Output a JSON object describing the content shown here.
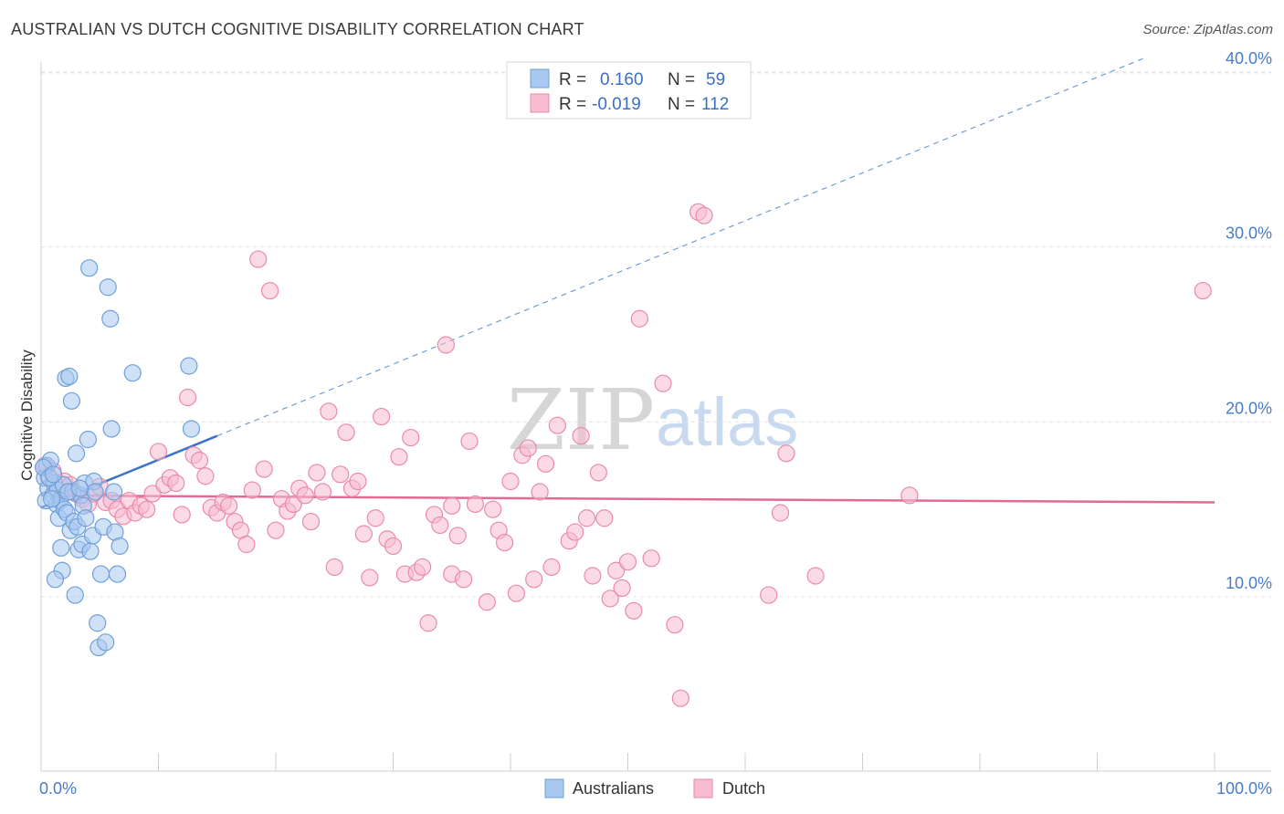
{
  "title": "AUSTRALIAN VS DUTCH COGNITIVE DISABILITY CORRELATION CHART",
  "source": "Source: ZipAtlas.com",
  "watermark": {
    "zip": "ZIP",
    "atlas": "atlas"
  },
  "legend_top": {
    "rows": [
      {
        "r_label": "R =",
        "r_value": "0.160",
        "n_label": "N =",
        "n_value": "59",
        "color": "#a8c8f0",
        "stroke": "#6f9fd8"
      },
      {
        "r_label": "R =",
        "r_value": "-0.019",
        "n_label": "N =",
        "n_value": "112",
        "color": "#f8bcd0",
        "stroke": "#e98aaa"
      }
    ]
  },
  "legend_bottom": {
    "items": [
      {
        "label": "Australians",
        "color": "#a8c8f0",
        "stroke": "#6f9fd8"
      },
      {
        "label": "Dutch",
        "color": "#f8bcd0",
        "stroke": "#e98aaa"
      }
    ]
  },
  "chart_data": {
    "type": "scatter",
    "title": "AUSTRALIAN VS DUTCH COGNITIVE DISABILITY CORRELATION CHART",
    "xlabel": "",
    "ylabel": "Cognitive Disability",
    "xlim": [
      0,
      100
    ],
    "ylim": [
      0,
      42
    ],
    "x_tick_labels": [
      "0.0%",
      "100.0%"
    ],
    "y_ticks": [
      10,
      20,
      30,
      40
    ],
    "y_tick_labels": [
      "10.0%",
      "20.0%",
      "30.0%",
      "40.0%"
    ],
    "grid": true,
    "legend_position": "top-center",
    "series": [
      {
        "name": "Australians",
        "color": "#6f9fd8",
        "fill": "#a8c8f0",
        "points": [
          [
            0.3,
            16.8
          ],
          [
            0.5,
            17.5
          ],
          [
            0.6,
            16.2
          ],
          [
            0.8,
            17.8
          ],
          [
            1.0,
            15.8
          ],
          [
            1.1,
            16.5
          ],
          [
            1.3,
            15.3
          ],
          [
            1.4,
            16.1
          ],
          [
            1.5,
            14.5
          ],
          [
            1.6,
            15.5
          ],
          [
            1.7,
            12.8
          ],
          [
            1.8,
            11.5
          ],
          [
            1.9,
            16.4
          ],
          [
            2.0,
            15.0
          ],
          [
            2.1,
            22.5
          ],
          [
            2.2,
            14.8
          ],
          [
            2.4,
            22.6
          ],
          [
            2.5,
            13.8
          ],
          [
            2.6,
            21.2
          ],
          [
            2.7,
            16.0
          ],
          [
            2.8,
            14.3
          ],
          [
            2.9,
            10.1
          ],
          [
            3.0,
            18.2
          ],
          [
            3.1,
            14.0
          ],
          [
            3.2,
            12.7
          ],
          [
            3.4,
            15.8
          ],
          [
            3.5,
            13.0
          ],
          [
            3.6,
            15.2
          ],
          [
            3.7,
            16.5
          ],
          [
            3.8,
            14.5
          ],
          [
            4.0,
            19.0
          ],
          [
            4.1,
            28.8
          ],
          [
            4.2,
            12.6
          ],
          [
            4.4,
            13.5
          ],
          [
            4.5,
            16.6
          ],
          [
            4.6,
            16.0
          ],
          [
            4.8,
            8.5
          ],
          [
            4.9,
            7.1
          ],
          [
            5.1,
            11.3
          ],
          [
            5.3,
            14.0
          ],
          [
            5.5,
            7.4
          ],
          [
            5.7,
            27.7
          ],
          [
            5.9,
            25.9
          ],
          [
            6.0,
            19.6
          ],
          [
            6.2,
            16.0
          ],
          [
            6.3,
            13.7
          ],
          [
            6.5,
            11.3
          ],
          [
            6.7,
            12.9
          ],
          [
            7.8,
            22.8
          ],
          [
            12.6,
            23.2
          ],
          [
            12.8,
            19.6
          ],
          [
            0.2,
            17.4
          ],
          [
            0.4,
            15.5
          ],
          [
            0.7,
            16.8
          ],
          [
            0.9,
            15.6
          ],
          [
            1.2,
            11.0
          ],
          [
            2.3,
            16.0
          ],
          [
            3.3,
            16.2
          ],
          [
            1.05,
            17.0
          ]
        ],
        "trend": {
          "x": [
            0,
            15
          ],
          "y": [
            15.1,
            19.2
          ],
          "dashed_extension": {
            "x": [
              15,
              94
            ],
            "y": [
              19.2,
              40.8
            ]
          }
        }
      },
      {
        "name": "Dutch",
        "color": "#e98aaa",
        "fill": "#f8bcd0",
        "points": [
          [
            0.3,
            17.5
          ],
          [
            0.6,
            16.9
          ],
          [
            1.0,
            17.2
          ],
          [
            1.5,
            16.5
          ],
          [
            2.0,
            16.6
          ],
          [
            2.5,
            16.4
          ],
          [
            3.0,
            15.9
          ],
          [
            3.5,
            15.6
          ],
          [
            4.0,
            15.3
          ],
          [
            4.5,
            15.9
          ],
          [
            5.0,
            16.3
          ],
          [
            5.5,
            15.4
          ],
          [
            6.0,
            15.5
          ],
          [
            6.5,
            15.0
          ],
          [
            7.0,
            14.6
          ],
          [
            7.5,
            15.5
          ],
          [
            8.0,
            14.8
          ],
          [
            8.5,
            15.2
          ],
          [
            9.0,
            15.0
          ],
          [
            9.5,
            15.9
          ],
          [
            10.0,
            18.3
          ],
          [
            10.5,
            16.4
          ],
          [
            11.0,
            16.8
          ],
          [
            11.5,
            16.5
          ],
          [
            12.0,
            14.7
          ],
          [
            12.5,
            21.4
          ],
          [
            13.0,
            18.1
          ],
          [
            13.5,
            17.8
          ],
          [
            14.0,
            16.9
          ],
          [
            14.5,
            15.1
          ],
          [
            15.0,
            14.8
          ],
          [
            15.5,
            15.4
          ],
          [
            16.0,
            15.2
          ],
          [
            16.5,
            14.3
          ],
          [
            17.0,
            13.8
          ],
          [
            17.5,
            13.0
          ],
          [
            18.0,
            16.1
          ],
          [
            18.5,
            29.3
          ],
          [
            19.0,
            17.3
          ],
          [
            19.5,
            27.5
          ],
          [
            20.0,
            13.8
          ],
          [
            20.5,
            15.6
          ],
          [
            21.0,
            14.9
          ],
          [
            21.5,
            15.3
          ],
          [
            22.0,
            16.2
          ],
          [
            22.5,
            15.8
          ],
          [
            23.0,
            14.3
          ],
          [
            23.5,
            17.1
          ],
          [
            24.0,
            16.0
          ],
          [
            24.5,
            20.6
          ],
          [
            25.0,
            11.7
          ],
          [
            25.5,
            17.0
          ],
          [
            26.0,
            19.4
          ],
          [
            26.5,
            16.2
          ],
          [
            27.0,
            16.6
          ],
          [
            27.5,
            13.6
          ],
          [
            28.0,
            11.1
          ],
          [
            28.5,
            14.5
          ],
          [
            29.0,
            20.3
          ],
          [
            29.5,
            13.3
          ],
          [
            30.0,
            12.9
          ],
          [
            30.5,
            18.0
          ],
          [
            31.0,
            11.3
          ],
          [
            31.5,
            19.1
          ],
          [
            32.0,
            11.4
          ],
          [
            32.5,
            11.7
          ],
          [
            33.0,
            8.5
          ],
          [
            33.5,
            14.7
          ],
          [
            34.0,
            14.1
          ],
          [
            34.5,
            24.4
          ],
          [
            35.0,
            11.3
          ],
          [
            35.5,
            13.5
          ],
          [
            36.0,
            11.0
          ],
          [
            36.5,
            18.9
          ],
          [
            37.0,
            15.3
          ],
          [
            38.0,
            9.7
          ],
          [
            38.5,
            15.0
          ],
          [
            39.0,
            13.8
          ],
          [
            39.5,
            13.1
          ],
          [
            40.0,
            16.6
          ],
          [
            40.5,
            10.2
          ],
          [
            41.0,
            18.1
          ],
          [
            41.5,
            18.5
          ],
          [
            42.0,
            11.0
          ],
          [
            42.5,
            16.0
          ],
          [
            43.0,
            17.6
          ],
          [
            43.5,
            11.7
          ],
          [
            44.0,
            19.8
          ],
          [
            45.0,
            13.2
          ],
          [
            45.5,
            13.7
          ],
          [
            46.0,
            19.2
          ],
          [
            47.0,
            11.2
          ],
          [
            47.5,
            17.1
          ],
          [
            48.0,
            14.5
          ],
          [
            48.5,
            9.9
          ],
          [
            49.0,
            11.5
          ],
          [
            49.5,
            10.5
          ],
          [
            50.0,
            12.0
          ],
          [
            50.5,
            9.2
          ],
          [
            51.0,
            25.9
          ],
          [
            52.0,
            12.2
          ],
          [
            53.0,
            22.2
          ],
          [
            54.0,
            8.4
          ],
          [
            54.5,
            4.2
          ],
          [
            56.0,
            32.0
          ],
          [
            56.5,
            31.8
          ],
          [
            62.0,
            10.1
          ],
          [
            63.0,
            14.8
          ],
          [
            63.5,
            18.2
          ],
          [
            66.0,
            11.2
          ],
          [
            74.0,
            15.8
          ],
          [
            99.0,
            27.5
          ],
          [
            35.0,
            15.2
          ],
          [
            46.5,
            14.5
          ]
        ],
        "trend": {
          "x": [
            0,
            100
          ],
          "y": [
            15.8,
            15.4
          ]
        }
      }
    ]
  }
}
